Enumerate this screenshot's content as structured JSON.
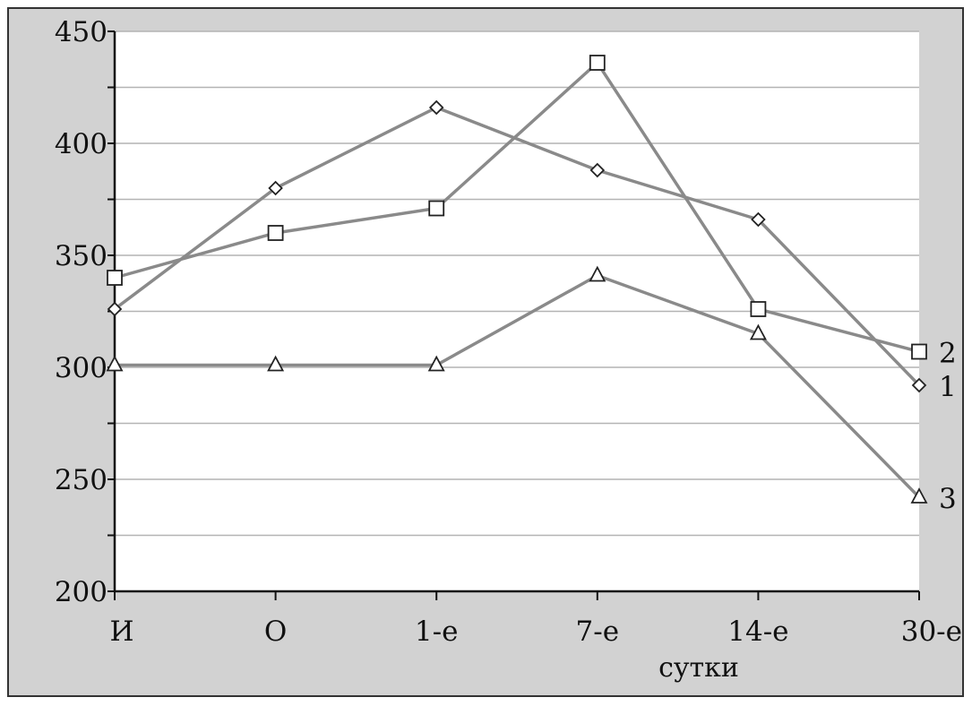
{
  "chart_data": {
    "type": "line",
    "categories": [
      "И",
      "О",
      "1-е",
      "7-е",
      "14-е",
      "30-е"
    ],
    "xlabel": "сутки",
    "ylabel": "",
    "ylim": [
      200,
      450
    ],
    "y_ticks": [
      200,
      250,
      300,
      350,
      400,
      450
    ],
    "grid": true,
    "series": [
      {
        "name": "1",
        "marker": "diamond",
        "values": [
          326,
          380,
          416,
          388,
          366,
          292
        ]
      },
      {
        "name": "2",
        "marker": "square",
        "values": [
          340,
          360,
          371,
          436,
          326,
          307
        ]
      },
      {
        "name": "3",
        "marker": "triangle",
        "values": [
          301,
          301,
          301,
          341,
          315,
          242
        ]
      }
    ],
    "colors": {
      "line": "#8a8a8a",
      "marker_fill": "#ffffff",
      "marker_stroke": "#222222",
      "background": "#d2d2d2",
      "plot": "#ffffff"
    }
  }
}
